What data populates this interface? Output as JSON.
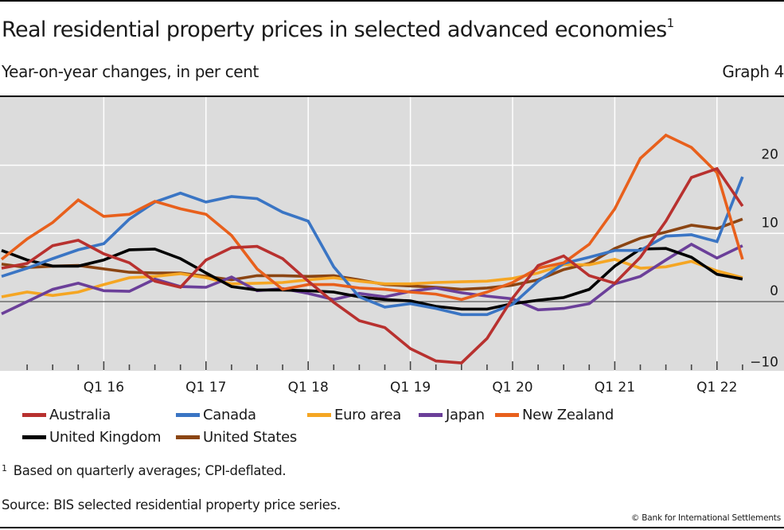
{
  "header": {
    "title": "Real residential property prices in selected advanced economies",
    "title_footnote_marker": "1",
    "subtitle": "Year-on-year changes, in per cent",
    "graph_number": "Graph 4"
  },
  "footer": {
    "footnote_marker": "1",
    "footnote": "Based on quarterly averages; CPI-deflated.",
    "source": "Source: BIS selected residential property price series.",
    "copyright": "© Bank for International Settlements"
  },
  "chart_data": {
    "type": "line",
    "title": "Real residential property prices in selected advanced economies",
    "subtitle": "Year-on-year changes, in per cent",
    "xlabel": "",
    "ylabel": "",
    "x": [
      "Q1 15",
      "Q2 15",
      "Q3 15",
      "Q4 15",
      "Q1 16",
      "Q2 16",
      "Q3 16",
      "Q4 16",
      "Q1 17",
      "Q2 17",
      "Q3 17",
      "Q4 17",
      "Q1 18",
      "Q2 18",
      "Q3 18",
      "Q4 18",
      "Q1 19",
      "Q2 19",
      "Q3 19",
      "Q4 19",
      "Q1 20",
      "Q2 20",
      "Q3 20",
      "Q4 20",
      "Q1 21",
      "Q2 21",
      "Q3 21",
      "Q4 21",
      "Q1 22",
      "Q2 22"
    ],
    "x_tick_labels": [
      "Q1 16",
      "Q1 17",
      "Q1 18",
      "Q1 19",
      "Q1 20",
      "Q1 21",
      "Q1 22"
    ],
    "ylim": [
      -10,
      29
    ],
    "y_ticks": [
      -10,
      0,
      10,
      20
    ],
    "y_tick_labels": [
      "−10",
      "0",
      "10",
      "20"
    ],
    "y_axis_side": "right",
    "grid": true,
    "legend_position": "bottom",
    "background": "#dcdcdc",
    "series": [
      {
        "name": "Australia",
        "color": "#b8312f",
        "values": [
          4.9,
          5.6,
          8.2,
          9.0,
          7.0,
          5.7,
          3.0,
          2.1,
          6.1,
          7.9,
          8.1,
          6.3,
          3.0,
          -0.1,
          -2.8,
          -3.8,
          -6.9,
          -8.7,
          -9.0,
          -5.4,
          0.5,
          5.3,
          6.7,
          3.8,
          2.7,
          6.5,
          11.8,
          18.2,
          19.5,
          14.0
        ]
      },
      {
        "name": "Canada",
        "color": "#3a75c4",
        "values": [
          3.7,
          4.9,
          6.3,
          7.6,
          8.5,
          12.1,
          14.6,
          15.9,
          14.6,
          15.4,
          15.1,
          13.1,
          11.8,
          5.1,
          0.7,
          -0.8,
          -0.3,
          -1.0,
          -1.9,
          -1.9,
          -0.4,
          3.0,
          5.6,
          6.5,
          7.5,
          7.5,
          9.6,
          9.8,
          8.8,
          18.3
        ]
      },
      {
        "name": "Euro area",
        "color": "#f5a623",
        "values": [
          0.7,
          1.4,
          0.9,
          1.4,
          2.5,
          3.5,
          3.7,
          4.1,
          3.5,
          2.6,
          2.7,
          2.8,
          3.2,
          3.5,
          3.0,
          2.6,
          2.6,
          2.8,
          2.9,
          3.0,
          3.4,
          4.2,
          5.4,
          5.4,
          6.2,
          4.9,
          5.1,
          5.9,
          4.5,
          3.5
        ]
      },
      {
        "name": "Japan",
        "color": "#6b3f99",
        "values": [
          -1.8,
          0.0,
          1.8,
          2.7,
          1.6,
          1.5,
          3.3,
          2.2,
          2.1,
          3.6,
          1.6,
          1.9,
          1.2,
          0.3,
          1.2,
          0.7,
          1.5,
          2.0,
          1.3,
          0.8,
          0.4,
          -1.2,
          -1.0,
          -0.3,
          2.6,
          3.7,
          6.1,
          8.4,
          6.4,
          8.2
        ]
      },
      {
        "name": "New Zealand",
        "color": "#e8601c",
        "values": [
          6.2,
          9.2,
          11.6,
          14.9,
          12.5,
          12.8,
          14.7,
          13.6,
          12.8,
          9.7,
          4.8,
          1.8,
          2.5,
          2.5,
          2.0,
          1.8,
          1.4,
          1.1,
          0.3,
          1.4,
          2.8,
          4.9,
          5.7,
          8.4,
          13.6,
          21.0,
          24.4,
          22.6,
          18.9,
          6.2
        ]
      },
      {
        "name": "United Kingdom",
        "color": "#000000",
        "values": [
          7.5,
          6.1,
          5.2,
          5.2,
          6.1,
          7.6,
          7.7,
          6.3,
          4.2,
          2.2,
          1.7,
          1.7,
          1.6,
          1.4,
          0.7,
          0.3,
          0.1,
          -0.7,
          -1.1,
          -1.1,
          -0.3,
          0.2,
          0.6,
          1.8,
          5.2,
          7.7,
          7.8,
          6.5,
          4.0,
          3.3
        ]
      },
      {
        "name": "United States",
        "color": "#8b4513",
        "values": [
          5.5,
          5.0,
          5.2,
          5.3,
          4.8,
          4.3,
          4.2,
          4.2,
          3.7,
          3.2,
          3.8,
          3.8,
          3.7,
          3.8,
          3.2,
          2.5,
          2.3,
          2.1,
          1.8,
          2.0,
          2.4,
          3.2,
          4.7,
          5.6,
          7.8,
          9.3,
          10.2,
          11.2,
          10.7,
          12.1
        ]
      }
    ]
  }
}
